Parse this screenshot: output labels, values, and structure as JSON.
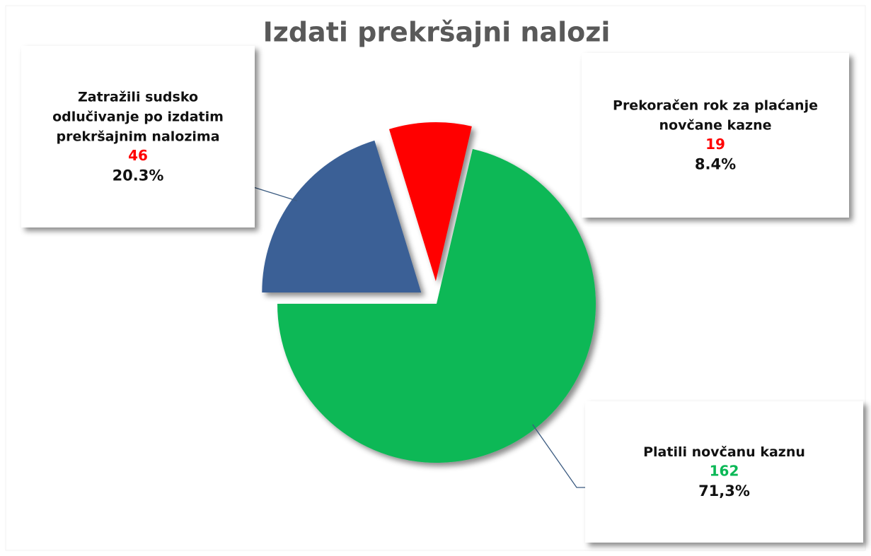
{
  "chart_data": {
    "type": "pie",
    "title": "Izdati prekršajni nalozi",
    "categories": [
      "Platili novčanu kaznu",
      "Zatražili sudsko\nodlučivanje po izdatim\nprekršajnim nalozima",
      "Prekoračen rok za plaćanje\nnovčane kazne"
    ],
    "values": [
      162,
      46,
      19
    ],
    "percent_labels": [
      "71,3%",
      "20.3%",
      "8.4%"
    ],
    "colors": [
      "#0bb856",
      "#3a6096",
      "#ff0000"
    ],
    "value_label_colors": [
      "#0bb856",
      "#ff0000",
      "#ff0000"
    ]
  }
}
